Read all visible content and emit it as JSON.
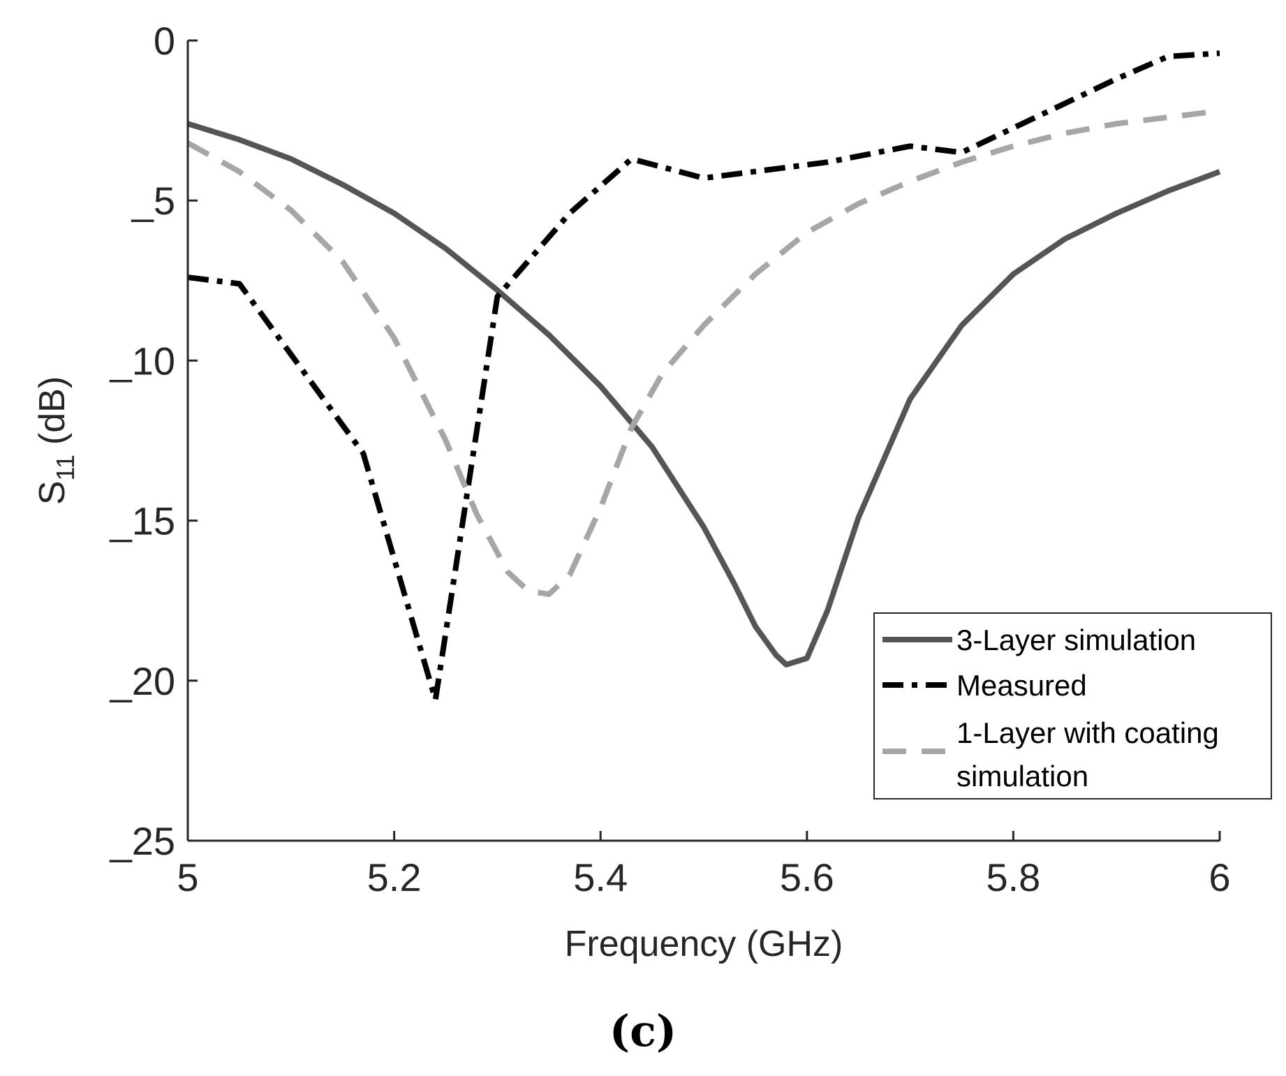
{
  "chart_data": {
    "type": "line",
    "xlabel": "Frequency (GHz)",
    "ylabel_main": "S",
    "ylabel_sub": "11",
    "ylabel_unit": "(dB)",
    "xlim": [
      5,
      6
    ],
    "ylim": [
      -25,
      0
    ],
    "xticks": [
      5,
      5.2,
      5.4,
      5.6,
      5.8,
      6
    ],
    "xtick_labels": [
      "5",
      "5.2",
      "5.4",
      "5.6",
      "5.8",
      "6"
    ],
    "yticks": [
      0,
      -5,
      -10,
      -15,
      -20,
      -25
    ],
    "ytick_labels": [
      "0",
      "_5",
      "_10",
      "_15",
      "_20",
      "_25"
    ],
    "grid": false,
    "legend_position": "lower-right",
    "series": [
      {
        "name": "3-Layer simulation",
        "color": "#555555",
        "style": "solid",
        "x": [
          5.0,
          5.05,
          5.1,
          5.15,
          5.2,
          5.25,
          5.3,
          5.35,
          5.4,
          5.45,
          5.5,
          5.53,
          5.55,
          5.57,
          5.58,
          5.6,
          5.62,
          5.65,
          5.7,
          5.75,
          5.8,
          5.85,
          5.9,
          5.95,
          6.0
        ],
        "y": [
          -2.6,
          -3.1,
          -3.7,
          -4.5,
          -5.4,
          -6.5,
          -7.8,
          -9.2,
          -10.8,
          -12.7,
          -15.2,
          -17.0,
          -18.3,
          -19.2,
          -19.5,
          -19.3,
          -17.8,
          -14.9,
          -11.2,
          -8.9,
          -7.3,
          -6.2,
          -5.4,
          -4.7,
          -4.1
        ]
      },
      {
        "name": "Measured",
        "color": "#000000",
        "style": "dashdot",
        "x": [
          5.0,
          5.05,
          5.17,
          5.24,
          5.3,
          5.37,
          5.43,
          5.5,
          5.62,
          5.7,
          5.75,
          5.9,
          5.95,
          6.0
        ],
        "y": [
          -7.4,
          -7.6,
          -12.9,
          -20.6,
          -8.0,
          -5.4,
          -3.7,
          -4.3,
          -3.8,
          -3.3,
          -3.5,
          -1.2,
          -0.5,
          -0.4
        ]
      },
      {
        "name": "1-Layer with coating simulation",
        "color": "#a6a6a6",
        "style": "dashed",
        "x": [
          5.0,
          5.05,
          5.1,
          5.15,
          5.2,
          5.25,
          5.28,
          5.31,
          5.33,
          5.35,
          5.37,
          5.4,
          5.43,
          5.46,
          5.5,
          5.55,
          5.6,
          5.65,
          5.7,
          5.75,
          5.8,
          5.85,
          5.9,
          5.95,
          6.0
        ],
        "y": [
          -3.2,
          -4.1,
          -5.3,
          -6.9,
          -9.3,
          -12.5,
          -14.8,
          -16.6,
          -17.2,
          -17.3,
          -16.7,
          -14.6,
          -12.1,
          -10.4,
          -8.9,
          -7.3,
          -6.0,
          -5.1,
          -4.4,
          -3.8,
          -3.3,
          -2.9,
          -2.6,
          -2.4,
          -2.2
        ]
      }
    ],
    "legend_labels": [
      "3-Layer simulation",
      "Measured",
      "1-Layer with coating",
      "simulation"
    ]
  },
  "caption": "(c)"
}
